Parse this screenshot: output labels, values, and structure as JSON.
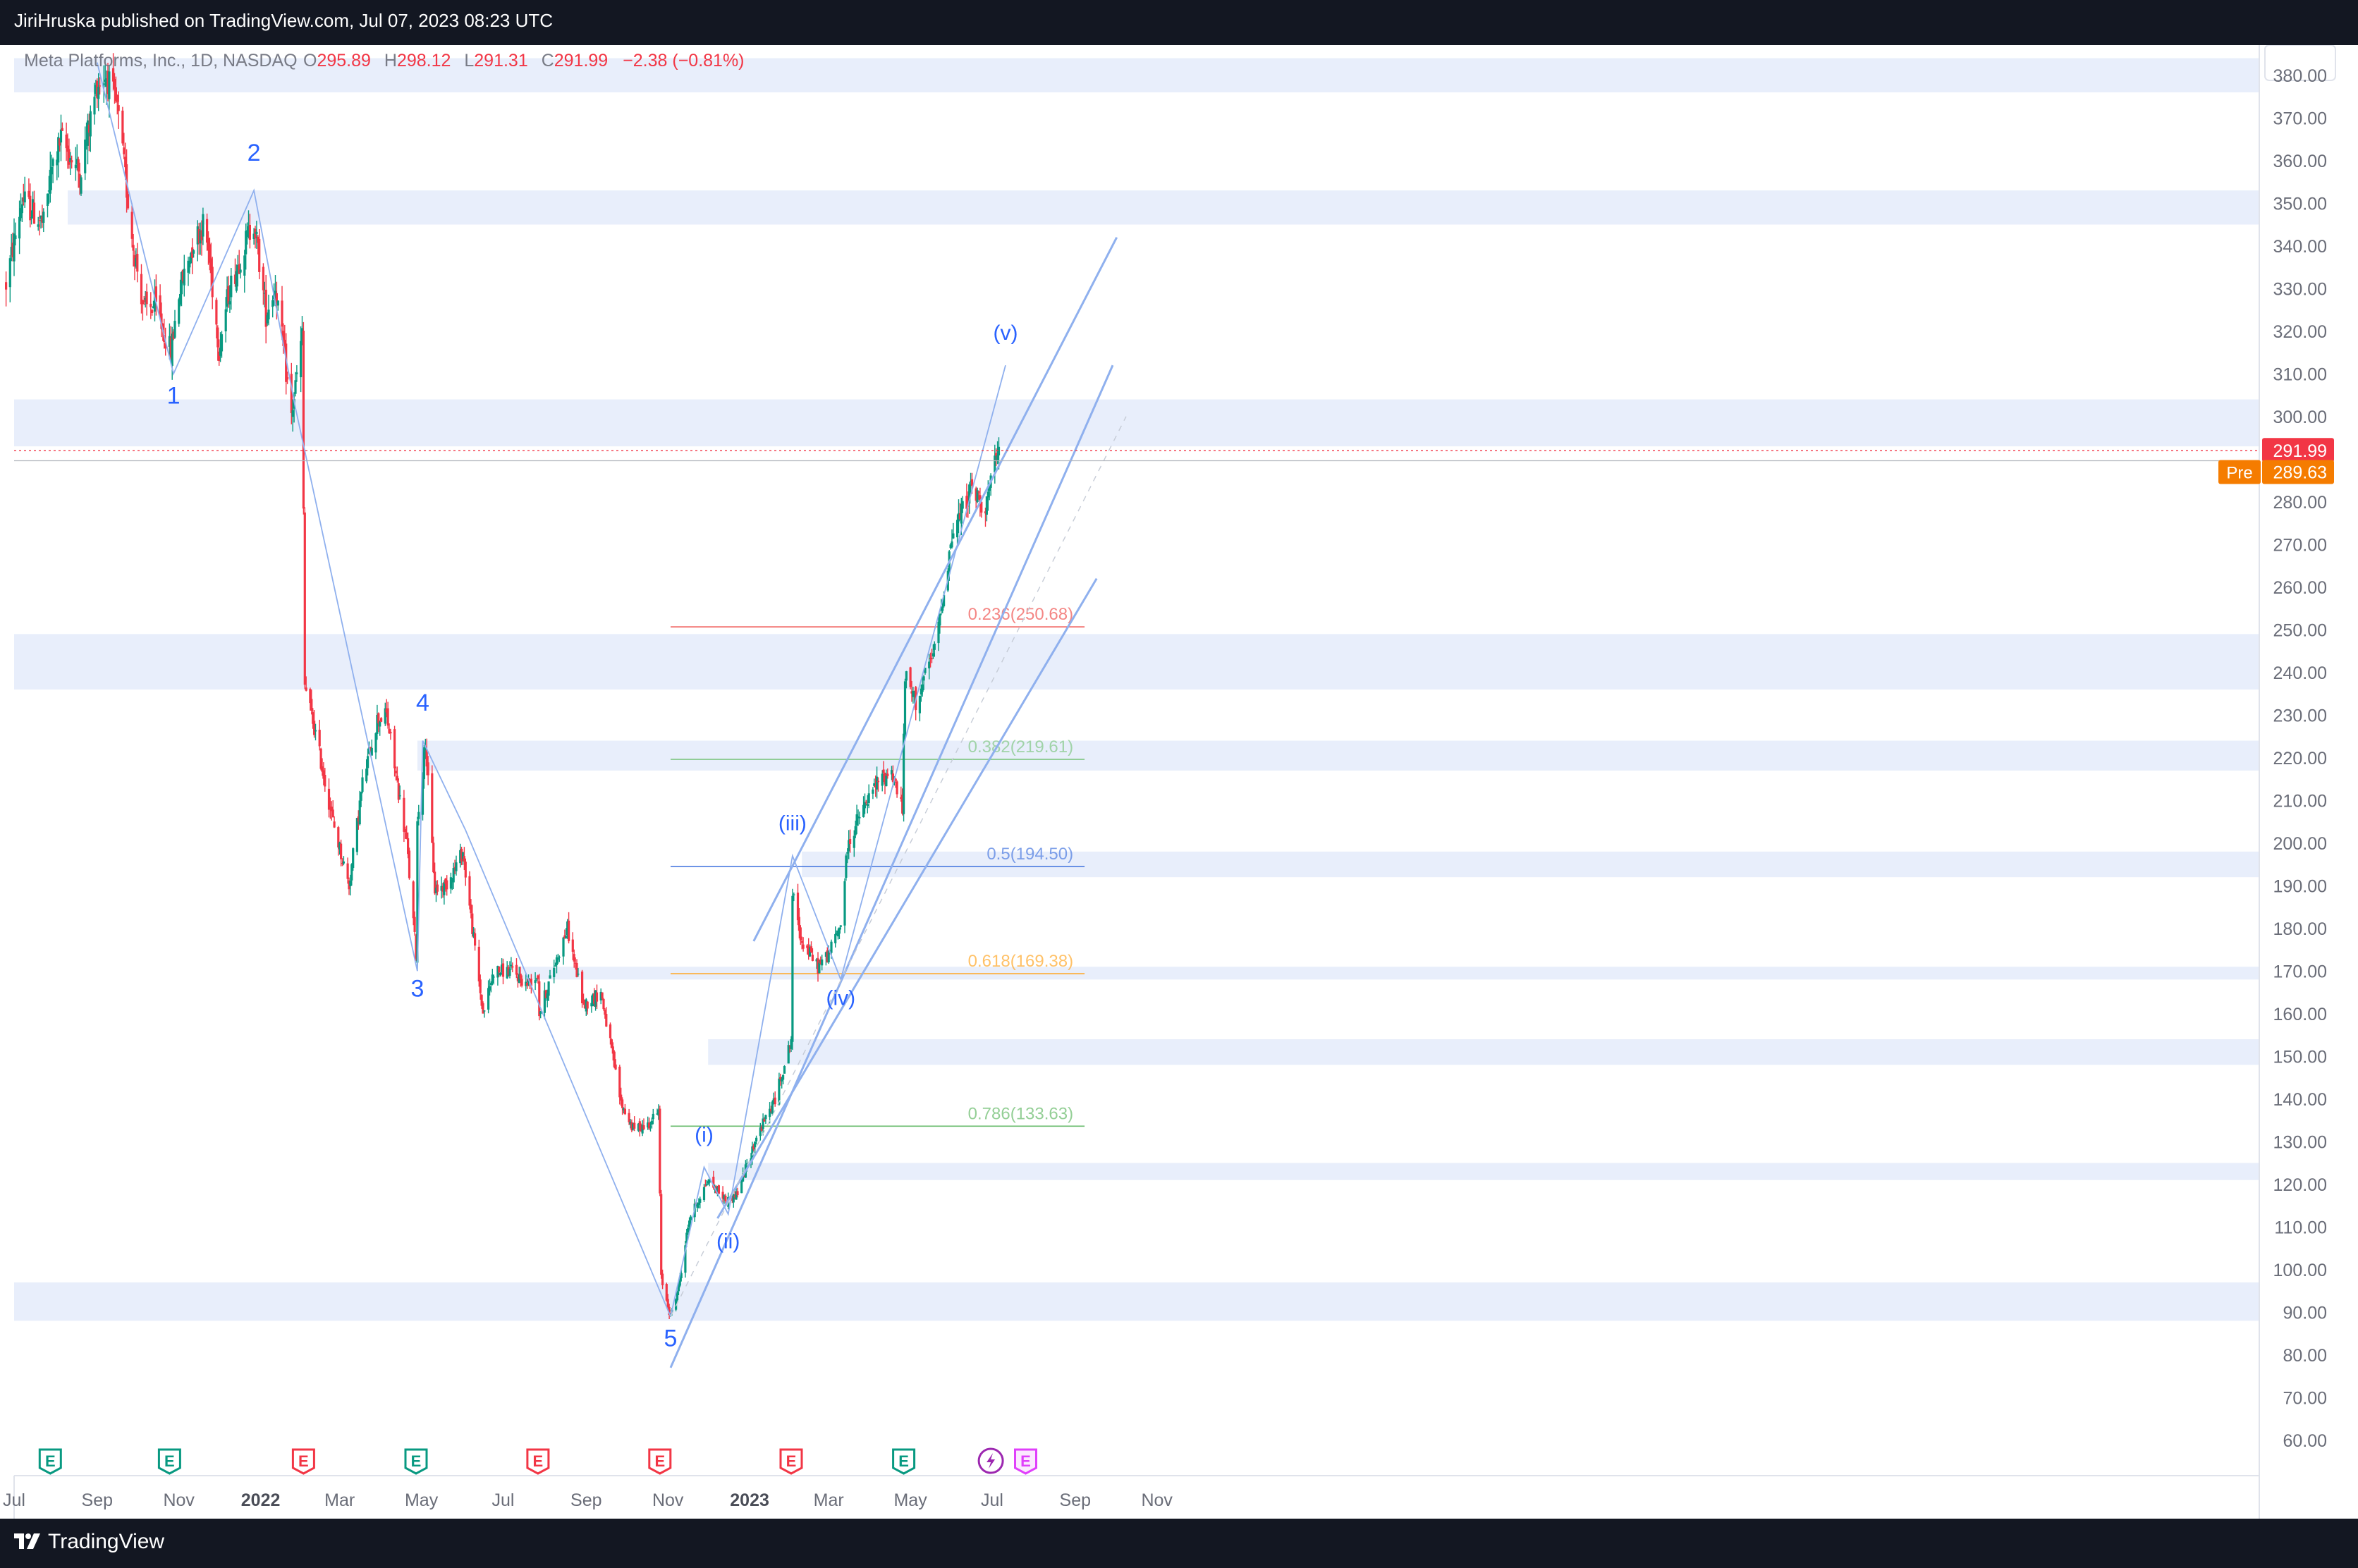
{
  "header": {
    "publisher_text": "JiriHruska published on TradingView.com, Jul 07, 2023 08:23 UTC"
  },
  "footer": {
    "brand": "TradingView",
    "logo_icon": "tradingview-logo-icon"
  },
  "symbol": {
    "name": "Meta Platforms, Inc., 1D, NASDAQ",
    "open_label": "O",
    "open": "295.89",
    "high_label": "H",
    "high": "298.12",
    "low_label": "L",
    "low": "291.31",
    "close_label": "C",
    "close": "291.99",
    "change": "−2.38 (−0.81%)"
  },
  "colors": {
    "up": "#089981",
    "down": "#f23645",
    "zone": "#e8eefb",
    "line": "#8fb0ee",
    "last_price_bg": "#f23645",
    "premarket_bg": "#f57c00",
    "wave_label": "#2962ff",
    "earnings_up": "#089981",
    "earnings_down": "#f23645",
    "dividend": "#9c27b0"
  },
  "chart_data": {
    "type": "candlestick",
    "ylim": [
      55,
      388
    ],
    "y_ticks": [
      "60.00",
      "70.00",
      "80.00",
      "90.00",
      "100.00",
      "110.00",
      "120.00",
      "130.00",
      "140.00",
      "150.00",
      "160.00",
      "170.00",
      "180.00",
      "190.00",
      "200.00",
      "210.00",
      "220.00",
      "230.00",
      "240.00",
      "250.00",
      "260.00",
      "270.00",
      "280.00",
      "290.00",
      "300.00",
      "310.00",
      "320.00",
      "330.00",
      "340.00",
      "350.00",
      "360.00",
      "370.00",
      "380.00"
    ],
    "x_ticks": [
      {
        "label": "Jul",
        "date": "2021-07-01",
        "bold": false
      },
      {
        "label": "Sep",
        "date": "2021-09-01",
        "bold": false
      },
      {
        "label": "Nov",
        "date": "2021-11-01",
        "bold": false
      },
      {
        "label": "2022",
        "date": "2022-01-01",
        "bold": true
      },
      {
        "label": "Mar",
        "date": "2022-03-01",
        "bold": false
      },
      {
        "label": "May",
        "date": "2022-05-01",
        "bold": false
      },
      {
        "label": "Jul",
        "date": "2022-07-01",
        "bold": false
      },
      {
        "label": "Sep",
        "date": "2022-09-01",
        "bold": false
      },
      {
        "label": "Nov",
        "date": "2022-11-01",
        "bold": false
      },
      {
        "label": "2023",
        "date": "2023-01-01",
        "bold": true
      },
      {
        "label": "Mar",
        "date": "2023-03-01",
        "bold": false
      },
      {
        "label": "May",
        "date": "2023-05-01",
        "bold": false
      },
      {
        "label": "Jul",
        "date": "2023-07-01",
        "bold": false
      },
      {
        "label": "Sep",
        "date": "2023-09-01",
        "bold": false
      },
      {
        "label": "Nov",
        "date": "2023-11-01",
        "bold": false
      }
    ],
    "price_path": [
      [
        "2021-06-25",
        331
      ],
      [
        "2021-07-07",
        351
      ],
      [
        "2021-07-23",
        345
      ],
      [
        "2021-07-29",
        358
      ],
      [
        "2021-08-05",
        365
      ],
      [
        "2021-08-19",
        357
      ],
      [
        "2021-09-01",
        378
      ],
      [
        "2021-09-08",
        380
      ],
      [
        "2021-09-16",
        372
      ],
      [
        "2021-09-28",
        340
      ],
      [
        "2021-10-06",
        325
      ],
      [
        "2021-10-14",
        326
      ],
      [
        "2021-10-26",
        315
      ],
      [
        "2021-11-01",
        329
      ],
      [
        "2021-11-12",
        341
      ],
      [
        "2021-11-19",
        345
      ],
      [
        "2021-11-23",
        339
      ],
      [
        "2021-12-01",
        316
      ],
      [
        "2021-12-08",
        329
      ],
      [
        "2021-12-13",
        334
      ],
      [
        "2021-12-21",
        341
      ],
      [
        "2021-12-27",
        346
      ],
      [
        "2022-01-05",
        324
      ],
      [
        "2022-01-12",
        331
      ],
      [
        "2022-01-24",
        300
      ],
      [
        "2022-02-01",
        319
      ],
      [
        "2022-02-03",
        237
      ],
      [
        "2022-02-10",
        227
      ],
      [
        "2022-02-24",
        205
      ],
      [
        "2022-03-08",
        190
      ],
      [
        "2022-03-18",
        214
      ],
      [
        "2022-03-29",
        229
      ],
      [
        "2022-04-05",
        230
      ],
      [
        "2022-04-20",
        200
      ],
      [
        "2022-04-27",
        174
      ],
      [
        "2022-04-28",
        205
      ],
      [
        "2022-05-04",
        224
      ],
      [
        "2022-05-11",
        189
      ],
      [
        "2022-05-19",
        190
      ],
      [
        "2022-06-01",
        198
      ],
      [
        "2022-06-10",
        175
      ],
      [
        "2022-06-16",
        160
      ],
      [
        "2022-06-24",
        170
      ],
      [
        "2022-07-08",
        170
      ],
      [
        "2022-07-18",
        167
      ],
      [
        "2022-07-27",
        169
      ],
      [
        "2022-07-28",
        160
      ],
      [
        "2022-08-09",
        172
      ],
      [
        "2022-08-18",
        180
      ],
      [
        "2022-08-30",
        162
      ],
      [
        "2022-09-12",
        165
      ],
      [
        "2022-09-27",
        139
      ],
      [
        "2022-10-06",
        133
      ],
      [
        "2022-10-17",
        134
      ],
      [
        "2022-10-25",
        137
      ],
      [
        "2022-10-27",
        98
      ],
      [
        "2022-11-03",
        89
      ],
      [
        "2022-11-09",
        96
      ],
      [
        "2022-11-17",
        112
      ],
      [
        "2022-12-01",
        121
      ],
      [
        "2022-12-15",
        116
      ],
      [
        "2022-12-23",
        118
      ],
      [
        "2023-01-06",
        131
      ],
      [
        "2023-01-20",
        140
      ],
      [
        "2023-02-01",
        154
      ],
      [
        "2023-02-02",
        188
      ],
      [
        "2023-02-09",
        177
      ],
      [
        "2023-02-21",
        171
      ],
      [
        "2023-03-01",
        174
      ],
      [
        "2023-03-10",
        181
      ],
      [
        "2023-03-15",
        199
      ],
      [
        "2023-03-22",
        205
      ],
      [
        "2023-04-06",
        214
      ],
      [
        "2023-04-17",
        217
      ],
      [
        "2023-04-25",
        208
      ],
      [
        "2023-04-27",
        239
      ],
      [
        "2023-05-05",
        233
      ],
      [
        "2023-05-19",
        245
      ],
      [
        "2023-06-01",
        272
      ],
      [
        "2023-06-15",
        283
      ],
      [
        "2023-06-26",
        279
      ],
      [
        "2023-07-06",
        292
      ]
    ],
    "series": [
      {
        "name": "0.236(250.68)",
        "type": "fib",
        "value": 250.68,
        "color": "#ef5350"
      },
      {
        "name": "0.382(219.61)",
        "type": "fib",
        "value": 219.61,
        "color": "#81c784"
      },
      {
        "name": "0.5(194.50)",
        "type": "fib",
        "value": 194.5,
        "color": "#4c7be0"
      },
      {
        "name": "0.618(169.38)",
        "type": "fib",
        "value": 169.38,
        "color": "#ffa726"
      },
      {
        "name": "0.786(133.63)",
        "type": "fib",
        "value": 133.63,
        "color": "#66bb6a"
      }
    ],
    "fib_start": "2022-11-03",
    "fib_end": "2023-09-08",
    "zones": [
      {
        "from": "2021-06-25",
        "y1": 384,
        "y2": 376
      },
      {
        "from": "2021-08-10",
        "y1": 353,
        "y2": 345
      },
      {
        "from": "2021-06-25",
        "y1": 304,
        "y2": 293
      },
      {
        "from": "2021-06-25",
        "y1": 249,
        "y2": 236
      },
      {
        "from": "2022-04-28",
        "y1": 224,
        "y2": 217
      },
      {
        "from": "2023-02-09",
        "y1": 198,
        "y2": 192
      },
      {
        "from": "2022-07-10",
        "y1": 171,
        "y2": 168
      },
      {
        "from": "2022-12-01",
        "y1": 154,
        "y2": 148
      },
      {
        "from": "2022-12-01",
        "y1": 125,
        "y2": 121
      },
      {
        "from": "2021-06-25",
        "y1": 97,
        "y2": 88
      }
    ],
    "wave_lines": [
      [
        [
          "2021-09-01",
          383
        ],
        [
          "2021-10-28",
          310
        ],
        [
          "2021-12-27",
          353
        ],
        [
          "2022-01-27",
          302
        ],
        [
          "2022-04-28",
          170
        ],
        [
          "2022-05-02",
          224
        ],
        [
          "2022-06-03",
          203
        ],
        [
          "2022-11-03",
          89
        ]
      ],
      [
        [
          "2022-11-03",
          89
        ],
        [
          "2022-11-28",
          124
        ],
        [
          "2022-12-16",
          113
        ],
        [
          "2023-02-02",
          197
        ],
        [
          "2023-03-10",
          168
        ],
        [
          "2023-07-11",
          312
        ]
      ]
    ],
    "channel_lines": [
      [
        [
          "2023-01-04",
          177
        ],
        [
          "2023-10-02",
          342
        ]
      ],
      [
        [
          "2022-11-03",
          77
        ],
        [
          "2023-09-29",
          312
        ]
      ],
      [
        [
          "2022-12-08",
          112
        ],
        [
          "2023-09-17",
          262
        ]
      ]
    ],
    "dashed_line": [
      [
        "2022-11-03",
        89
      ],
      [
        "2023-10-09",
        300
      ]
    ],
    "wave_labels": [
      {
        "label": "1",
        "date": "2021-10-28",
        "y": 303,
        "size": 34
      },
      {
        "label": "2",
        "date": "2021-12-27",
        "y": 360,
        "size": 34
      },
      {
        "label": "3",
        "date": "2022-04-28",
        "y": 164,
        "size": 34
      },
      {
        "label": "4",
        "date": "2022-05-02",
        "y": 231,
        "size": 34
      },
      {
        "label": "5",
        "date": "2022-11-03",
        "y": 82,
        "size": 34
      },
      {
        "label": "(i)",
        "date": "2022-11-28",
        "y": 130,
        "size": 30
      },
      {
        "label": "(ii)",
        "date": "2022-12-16",
        "y": 105,
        "size": 30
      },
      {
        "label": "(iii)",
        "date": "2023-02-02",
        "y": 203,
        "size": 30
      },
      {
        "label": "(iv)",
        "date": "2023-03-10",
        "y": 162,
        "size": 30
      },
      {
        "label": "(v)",
        "date": "2023-07-11",
        "y": 318,
        "size": 30
      }
    ],
    "last_price": {
      "value": 291.99,
      "label": "291.99"
    },
    "premarket": {
      "tag": "Pre",
      "value": 289.63,
      "label": "289.63"
    },
    "events": [
      {
        "date": "2021-07-28",
        "kind": "earnings-up"
      },
      {
        "date": "2021-10-25",
        "kind": "earnings-up"
      },
      {
        "date": "2022-02-02",
        "kind": "earnings-down"
      },
      {
        "date": "2022-04-27",
        "kind": "earnings-up"
      },
      {
        "date": "2022-07-27",
        "kind": "earnings-down"
      },
      {
        "date": "2022-10-26",
        "kind": "earnings-down"
      },
      {
        "date": "2023-02-01",
        "kind": "earnings-down"
      },
      {
        "date": "2023-04-26",
        "kind": "earnings-up"
      },
      {
        "date": "2023-06-30",
        "kind": "dividend-split"
      },
      {
        "date": "2023-07-26",
        "kind": "earnings-future"
      }
    ],
    "event_icon_labels": {
      "earnings": "E"
    }
  }
}
